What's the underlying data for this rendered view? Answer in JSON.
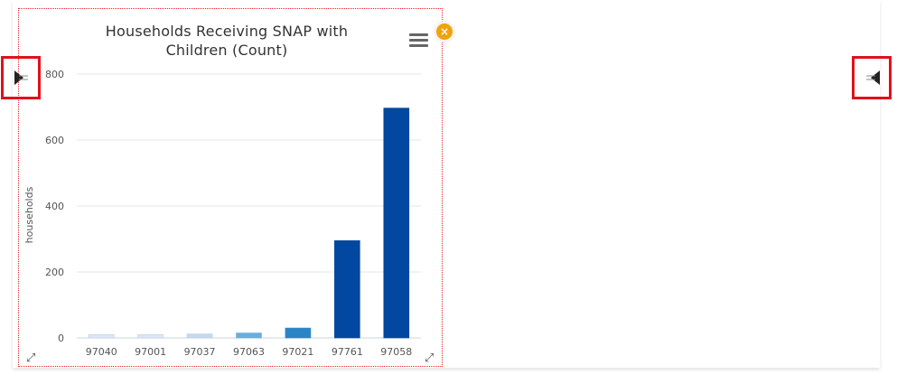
{
  "chart_data": {
    "type": "bar",
    "title": "Households Receiving SNAP with Children (Count)",
    "ylabel": "households",
    "xlabel": "",
    "categories": [
      "97040",
      "97001",
      "97037",
      "97063",
      "97021",
      "97761",
      "97058"
    ],
    "values": [
      10,
      10,
      12,
      15,
      30,
      295,
      697
    ],
    "bar_colors": [
      "#dce9f5",
      "#dce9f5",
      "#c3d9ee",
      "#6aaedc",
      "#2a84c6",
      "#0348a0",
      "#0348a0"
    ],
    "ylim": [
      0,
      800
    ],
    "yticks": [
      0,
      200,
      400,
      600,
      800
    ],
    "grid": true,
    "legend": "none"
  },
  "controls": {
    "close_glyph": "×",
    "close_icon": "close-circle-icon",
    "menu_icon": "hamburger-menu-icon",
    "resize_glyph": "⤢",
    "left_panel_glyph": "⊳",
    "right_panel_glyph": "⊲"
  },
  "colors": {
    "selection_border": "#e0242b",
    "close_button": "#f0a30a",
    "collapse_highlight": "#e0111b"
  }
}
